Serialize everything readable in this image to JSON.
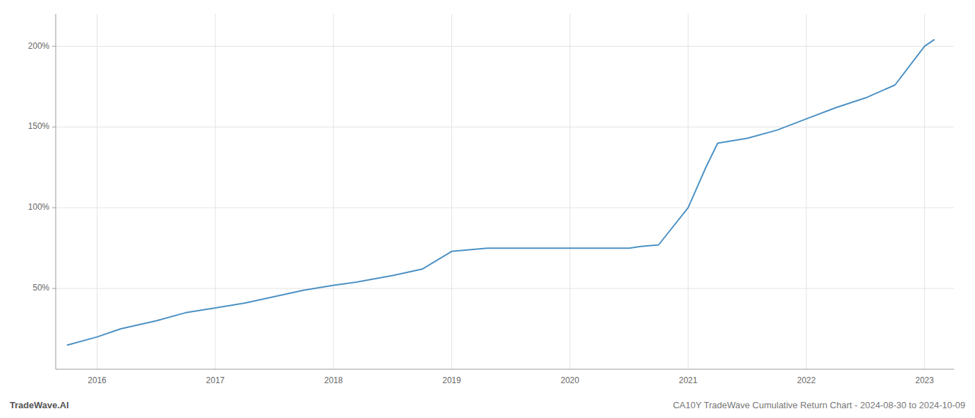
{
  "chart_data": {
    "type": "line",
    "title": "CA10Y TradeWave Cumulative Return Chart - 2024-08-30 to 2024-10-09",
    "annotations": [
      "TradeWave.AI"
    ],
    "x": [
      2015.75,
      2016.0,
      2016.2,
      2016.5,
      2016.75,
      2017.0,
      2017.25,
      2017.5,
      2017.75,
      2018.0,
      2018.2,
      2018.5,
      2018.75,
      2019.0,
      2019.15,
      2019.3,
      2019.5,
      2019.75,
      2020.0,
      2020.25,
      2020.5,
      2020.6,
      2020.75,
      2021.0,
      2021.15,
      2021.25,
      2021.5,
      2021.75,
      2022.0,
      2022.25,
      2022.5,
      2022.75,
      2023.0,
      2023.08
    ],
    "values": [
      15,
      20,
      25,
      30,
      35,
      38,
      41,
      45,
      49,
      52,
      54,
      58,
      62,
      73,
      74,
      75,
      75,
      75,
      75,
      75,
      75,
      76,
      77,
      100,
      125,
      140,
      143,
      148,
      155,
      162,
      168,
      176,
      200,
      204
    ],
    "color": "#4a90c4",
    "xlim": [
      2015.65,
      2023.25
    ],
    "ylim": [
      0,
      220
    ],
    "xticks": [
      2016,
      2017,
      2018,
      2019,
      2020,
      2021,
      2022,
      2023
    ],
    "yticks": [
      {
        "value": 50,
        "label": "50%"
      },
      {
        "value": 100,
        "label": "100%"
      },
      {
        "value": 150,
        "label": "150%"
      },
      {
        "value": 200,
        "label": "200%"
      }
    ],
    "grid": true
  }
}
